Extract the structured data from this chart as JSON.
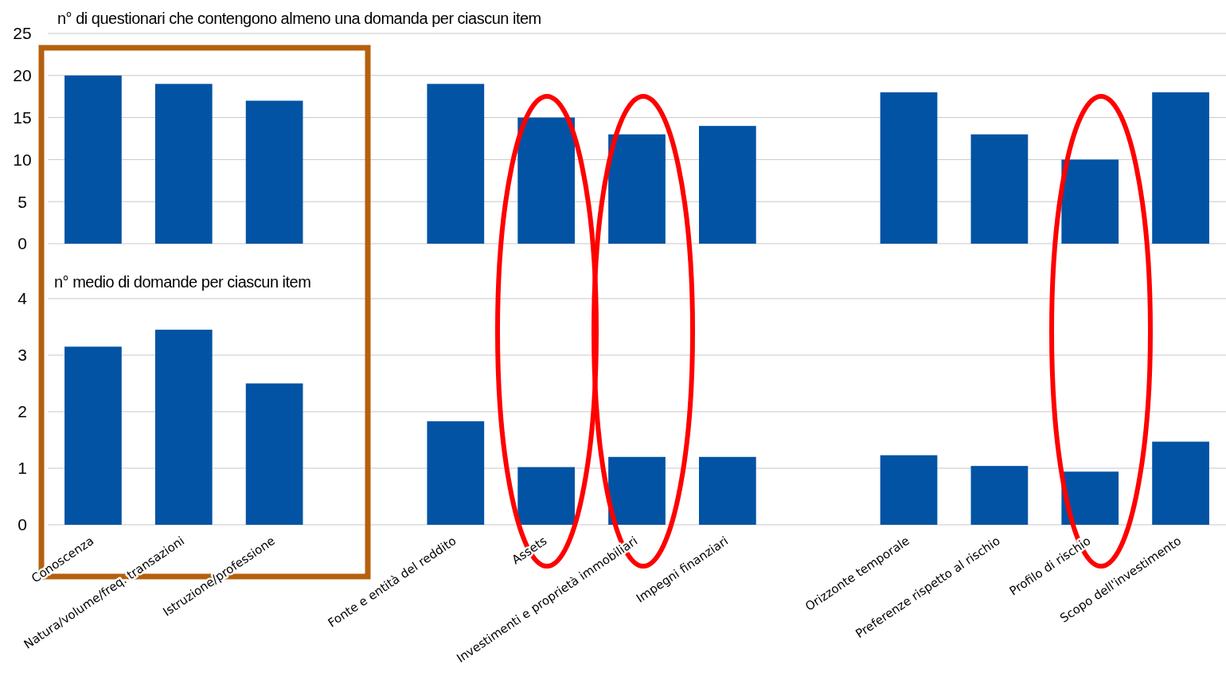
{
  "chart_data": [
    {
      "type": "bar",
      "title": "n° di questionari che contengono almeno una domanda per ciascun item",
      "categories": [
        null,
        null,
        null,
        null,
        null,
        null,
        null,
        null,
        null,
        null,
        null,
        null,
        null
      ],
      "values": [
        20,
        19,
        17,
        null,
        19,
        15,
        13,
        14,
        null,
        18,
        13,
        10,
        18
      ],
      "color": "#0253a4",
      "ylim": [
        0,
        25
      ],
      "yticks": [
        0,
        5,
        10,
        15,
        20,
        25
      ],
      "grid": "y",
      "tick_labels": "y"
    },
    {
      "type": "bar",
      "title": "n° medio di domande per ciascun item",
      "categories": [
        "Conoscenza",
        "Natura/volume/freq. transazioni",
        "Istruzione/professione",
        null,
        "Fonte e entità del reddito",
        "Assets",
        "Investimenti e proprietà immobiliari",
        "Impegni finanziari",
        null,
        "Orizzonte temporale",
        "Preferenze rispetto al rischio",
        "Profilo di rischio",
        "Scopo dell'investimento"
      ],
      "values": [
        3.15,
        3.45,
        2.5,
        null,
        1.83,
        1.02,
        1.2,
        1.2,
        null,
        1.23,
        1.04,
        0.94,
        1.47
      ],
      "color": "#0253a4",
      "ylim": [
        0,
        4
      ],
      "yticks": [
        0,
        1,
        2,
        3,
        4
      ],
      "grid": "y"
    }
  ]
}
